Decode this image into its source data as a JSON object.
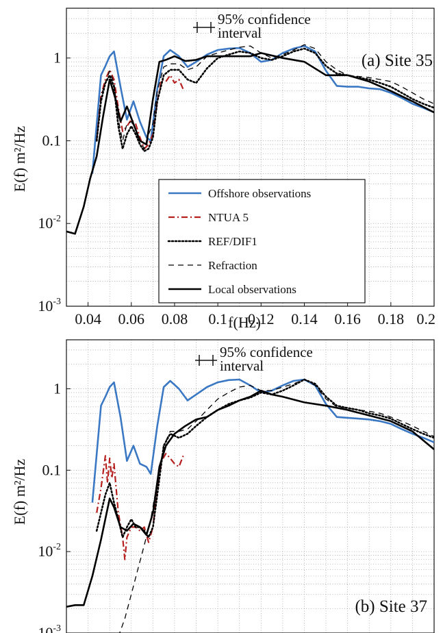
{
  "figure": {
    "xlabel": "f(Hz)",
    "ylabel": "E(f) m²/Hz",
    "x_ticks": [
      "0.04",
      "0.06",
      "0.08",
      "0.1",
      "0.12",
      "0.14",
      "0.16",
      "0.18",
      "0.2"
    ],
    "y_ticks": [
      {
        "base": "10",
        "exp": "-3"
      },
      {
        "base": "10",
        "exp": "-2"
      },
      {
        "base": "0.1",
        "exp": ""
      },
      {
        "base": "1",
        "exp": ""
      }
    ],
    "ci_label_line1": "95% confidence",
    "ci_label_line2": "interval"
  },
  "legend": [
    {
      "name": "Offshore observations",
      "color": "#3a78c4",
      "dash": "solid"
    },
    {
      "name": "NTUA 5",
      "color": "#b5201e",
      "dash": "dashdot"
    },
    {
      "name": "REF/DIF1",
      "color": "#000000",
      "dash": "dotted"
    },
    {
      "name": "Refraction",
      "color": "#000000",
      "dash": "dashed"
    },
    {
      "name": "Local observations",
      "color": "#000000",
      "dash": "solid"
    }
  ],
  "chart_data": [
    {
      "type": "line",
      "panel_label": "(a)  Site 35",
      "xlabel": "f(Hz)",
      "ylabel": "E(f) m²/Hz",
      "xlim": [
        0.03,
        0.2
      ],
      "ylim": [
        0.001,
        4
      ],
      "yscale": "log",
      "grid": true,
      "legend_position": "center",
      "series": [
        {
          "name": "Offshore observations",
          "x": [
            0.042,
            0.046,
            0.048,
            0.05,
            0.052,
            0.055,
            0.058,
            0.061,
            0.064,
            0.067,
            0.069,
            0.072,
            0.075,
            0.078,
            0.082,
            0.086,
            0.09,
            0.095,
            0.1,
            0.105,
            0.11,
            0.115,
            0.12,
            0.125,
            0.13,
            0.135,
            0.14,
            0.145,
            0.15,
            0.155,
            0.16,
            0.165,
            0.17,
            0.175,
            0.18,
            0.185,
            0.19,
            0.195,
            0.2
          ],
          "y": [
            0.04,
            0.62,
            0.8,
            1.05,
            1.2,
            0.45,
            0.18,
            0.3,
            0.17,
            0.11,
            0.1,
            0.42,
            1.05,
            1.25,
            1.05,
            0.78,
            0.9,
            1.1,
            1.25,
            1.3,
            1.32,
            1.15,
            0.9,
            0.95,
            1.15,
            1.3,
            1.4,
            1.2,
            0.7,
            0.46,
            0.45,
            0.45,
            0.43,
            0.42,
            0.38,
            0.33,
            0.28,
            0.25,
            0.22
          ]
        },
        {
          "name": "NTUA 5",
          "x": [
            0.044,
            0.046,
            0.048,
            0.05,
            0.052,
            0.054,
            0.056,
            0.058,
            0.06,
            0.062,
            0.064,
            0.066,
            0.068,
            0.07,
            0.072,
            0.074,
            0.076,
            0.078,
            0.08,
            0.082,
            0.084
          ],
          "y": [
            0.1,
            0.35,
            0.55,
            0.72,
            0.55,
            0.25,
            0.13,
            0.15,
            0.18,
            0.16,
            0.11,
            0.08,
            0.09,
            0.12,
            0.3,
            0.55,
            0.52,
            0.62,
            0.5,
            0.55,
            0.42
          ]
        },
        {
          "name": "REF/DIF1",
          "x": [
            0.044,
            0.046,
            0.048,
            0.05,
            0.052,
            0.054,
            0.056,
            0.058,
            0.06,
            0.062,
            0.064,
            0.066,
            0.068,
            0.07,
            0.072,
            0.075,
            0.078,
            0.082,
            0.086,
            0.09,
            0.095,
            0.1,
            0.105,
            0.11,
            0.115,
            0.12,
            0.125,
            0.13,
            0.135,
            0.14,
            0.145,
            0.15,
            0.155,
            0.16,
            0.165,
            0.17,
            0.175,
            0.18,
            0.185,
            0.19,
            0.195,
            0.2
          ],
          "y": [
            0.1,
            0.3,
            0.5,
            0.62,
            0.45,
            0.15,
            0.08,
            0.12,
            0.15,
            0.12,
            0.09,
            0.075,
            0.08,
            0.11,
            0.3,
            0.62,
            0.72,
            0.72,
            0.55,
            0.5,
            0.75,
            1.0,
            1.1,
            1.2,
            1.15,
            1.0,
            0.95,
            1.05,
            1.2,
            1.3,
            1.15,
            0.8,
            0.65,
            0.62,
            0.58,
            0.55,
            0.5,
            0.45,
            0.38,
            0.32,
            0.28,
            0.25
          ]
        },
        {
          "name": "Refraction",
          "x": [
            0.044,
            0.046,
            0.048,
            0.05,
            0.052,
            0.054,
            0.056,
            0.058,
            0.06,
            0.062,
            0.064,
            0.066,
            0.068,
            0.07,
            0.072,
            0.075,
            0.078,
            0.082,
            0.086,
            0.09,
            0.095,
            0.1,
            0.105,
            0.11,
            0.115,
            0.12,
            0.125,
            0.13,
            0.135,
            0.14,
            0.145,
            0.15,
            0.155,
            0.16,
            0.165,
            0.17,
            0.175,
            0.18,
            0.185,
            0.19,
            0.195,
            0.2
          ],
          "y": [
            0.1,
            0.35,
            0.5,
            0.7,
            0.5,
            0.18,
            0.1,
            0.16,
            0.17,
            0.14,
            0.1,
            0.08,
            0.12,
            0.16,
            0.4,
            0.78,
            0.85,
            0.85,
            0.72,
            0.78,
            1.05,
            1.15,
            1.25,
            1.35,
            1.4,
            1.15,
            1.0,
            1.1,
            1.25,
            1.45,
            1.3,
            0.9,
            0.72,
            0.62,
            0.6,
            0.58,
            0.55,
            0.52,
            0.45,
            0.38,
            0.32,
            0.28
          ]
        },
        {
          "name": "Local observations",
          "x": [
            0.03,
            0.034,
            0.038,
            0.041,
            0.044,
            0.047,
            0.05,
            0.053,
            0.055,
            0.058,
            0.061,
            0.064,
            0.067,
            0.07,
            0.073,
            0.076,
            0.08,
            0.085,
            0.09,
            0.095,
            0.1,
            0.105,
            0.11,
            0.115,
            0.12,
            0.13,
            0.14,
            0.15,
            0.16,
            0.17,
            0.18,
            0.19,
            0.2
          ],
          "y": [
            0.008,
            0.0075,
            0.016,
            0.035,
            0.065,
            0.2,
            0.55,
            0.3,
            0.17,
            0.26,
            0.16,
            0.1,
            0.09,
            0.32,
            0.9,
            0.95,
            1.05,
            0.92,
            0.95,
            1.05,
            1.05,
            1.05,
            1.05,
            1.05,
            1.15,
            1.0,
            0.9,
            0.62,
            0.62,
            0.52,
            0.4,
            0.3,
            0.22
          ]
        }
      ]
    },
    {
      "type": "line",
      "panel_label": "(b)  Site 37",
      "xlabel": "",
      "ylabel": "E(f) m²/Hz",
      "xlim": [
        0.03,
        0.2
      ],
      "ylim": [
        0.001,
        4
      ],
      "yscale": "log",
      "grid": true,
      "series": [
        {
          "name": "Offshore observations",
          "x": [
            0.042,
            0.046,
            0.048,
            0.05,
            0.052,
            0.055,
            0.058,
            0.061,
            0.064,
            0.067,
            0.069,
            0.072,
            0.075,
            0.078,
            0.082,
            0.086,
            0.09,
            0.095,
            0.1,
            0.105,
            0.11,
            0.115,
            0.12,
            0.125,
            0.13,
            0.135,
            0.14,
            0.145,
            0.15,
            0.155,
            0.16,
            0.165,
            0.17,
            0.175,
            0.18,
            0.185,
            0.19,
            0.195,
            0.2
          ],
          "y": [
            0.04,
            0.62,
            0.8,
            1.05,
            1.2,
            0.45,
            0.13,
            0.2,
            0.12,
            0.11,
            0.09,
            0.35,
            1.05,
            1.25,
            1.0,
            0.72,
            0.85,
            1.05,
            1.2,
            1.28,
            1.3,
            1.1,
            0.9,
            0.95,
            1.1,
            1.25,
            1.3,
            1.1,
            0.65,
            0.45,
            0.44,
            0.43,
            0.42,
            0.4,
            0.37,
            0.32,
            0.28,
            0.25,
            0.22
          ]
        },
        {
          "name": "NTUA 5",
          "x": [
            0.044,
            0.046,
            0.048,
            0.049,
            0.05,
            0.051,
            0.052,
            0.054,
            0.056,
            0.057,
            0.058,
            0.06,
            0.062,
            0.064,
            0.066,
            0.068,
            0.07,
            0.072,
            0.074,
            0.076,
            0.078,
            0.08,
            0.082,
            0.084
          ],
          "y": [
            0.03,
            0.06,
            0.15,
            0.07,
            0.14,
            0.08,
            0.12,
            0.03,
            0.015,
            0.008,
            0.015,
            0.02,
            0.02,
            0.018,
            0.02,
            0.013,
            0.02,
            0.06,
            0.13,
            0.16,
            0.14,
            0.12,
            0.11,
            0.15
          ]
        },
        {
          "name": "REF/DIF1",
          "x": [
            0.044,
            0.046,
            0.048,
            0.05,
            0.052,
            0.054,
            0.056,
            0.058,
            0.06,
            0.062,
            0.064,
            0.066,
            0.068,
            0.07,
            0.072,
            0.075,
            0.078,
            0.082,
            0.086,
            0.09,
            0.095,
            0.1,
            0.105,
            0.11,
            0.115,
            0.12,
            0.125,
            0.13,
            0.135,
            0.14,
            0.145,
            0.15,
            0.155,
            0.16,
            0.165,
            0.17,
            0.175,
            0.18,
            0.185,
            0.19,
            0.195,
            0.2
          ],
          "y": [
            0.018,
            0.03,
            0.05,
            0.07,
            0.04,
            0.025,
            0.015,
            0.02,
            0.025,
            0.02,
            0.02,
            0.018,
            0.015,
            0.02,
            0.05,
            0.2,
            0.28,
            0.25,
            0.28,
            0.35,
            0.45,
            0.55,
            0.65,
            0.72,
            0.78,
            0.9,
            0.85,
            0.95,
            1.1,
            1.3,
            1.15,
            0.8,
            0.62,
            0.58,
            0.55,
            0.5,
            0.47,
            0.43,
            0.37,
            0.32,
            0.28,
            0.25
          ]
        },
        {
          "name": "Refraction",
          "x": [
            0.054,
            0.057,
            0.06,
            0.063,
            0.066,
            0.069,
            0.071,
            0.073,
            0.075,
            0.078,
            0.082,
            0.086,
            0.09,
            0.095,
            0.1,
            0.105,
            0.11,
            0.115,
            0.12,
            0.125,
            0.13,
            0.135,
            0.14,
            0.145,
            0.15,
            0.155,
            0.16,
            0.165,
            0.17,
            0.175,
            0.18,
            0.185,
            0.19,
            0.195,
            0.2
          ],
          "y": [
            0.0009,
            0.0015,
            0.003,
            0.006,
            0.012,
            0.025,
            0.05,
            0.1,
            0.2,
            0.3,
            0.3,
            0.32,
            0.4,
            0.55,
            0.75,
            0.9,
            1.05,
            1.1,
            0.95,
            0.95,
            1.05,
            1.15,
            1.3,
            1.1,
            0.75,
            0.6,
            0.58,
            0.55,
            0.53,
            0.5,
            0.45,
            0.4,
            0.35,
            0.3,
            0.26
          ]
        },
        {
          "name": "Local observations",
          "x": [
            0.03,
            0.034,
            0.038,
            0.042,
            0.046,
            0.05,
            0.052,
            0.055,
            0.058,
            0.061,
            0.064,
            0.067,
            0.07,
            0.073,
            0.076,
            0.08,
            0.085,
            0.09,
            0.095,
            0.1,
            0.105,
            0.11,
            0.115,
            0.12,
            0.125,
            0.13,
            0.14,
            0.15,
            0.16,
            0.17,
            0.18,
            0.19,
            0.2
          ],
          "y": [
            0.0021,
            0.0022,
            0.0022,
            0.005,
            0.014,
            0.045,
            0.035,
            0.02,
            0.018,
            0.022,
            0.02,
            0.016,
            0.03,
            0.11,
            0.2,
            0.28,
            0.35,
            0.42,
            0.45,
            0.55,
            0.62,
            0.72,
            0.8,
            0.95,
            0.85,
            0.8,
            0.68,
            0.62,
            0.55,
            0.47,
            0.4,
            0.3,
            0.18
          ]
        }
      ]
    }
  ]
}
